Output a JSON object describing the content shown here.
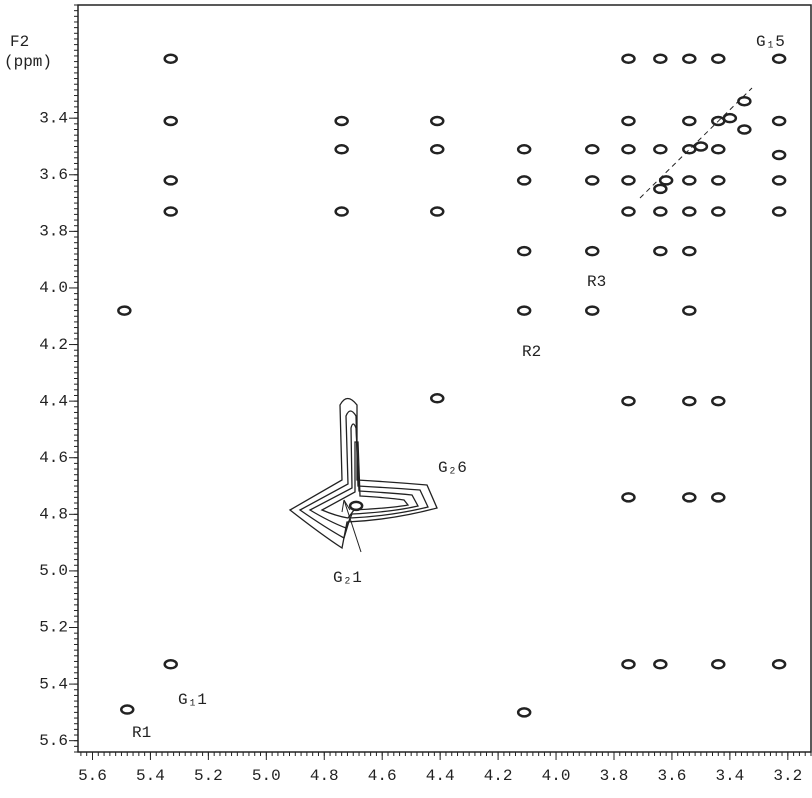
{
  "chart_data": {
    "type": "scatter",
    "y_label": [
      "F2",
      "(ppm)"
    ],
    "xlim": [
      5.65,
      3.12
    ],
    "ylim": [
      3.0,
      5.64
    ],
    "xticks": [
      5.6,
      5.4,
      5.2,
      {
        "value": 5,
        "label": "5.0"
      },
      4.8,
      4.6,
      4.4,
      4.2,
      {
        "value": 4,
        "label": "4.0"
      },
      3.8,
      3.6,
      3.4,
      3.2
    ],
    "yticks": [
      3.4,
      3.6,
      3.8,
      {
        "value": 4,
        "label": "4.0"
      },
      4.2,
      4.4,
      4.6,
      4.8,
      {
        "value": 5,
        "label": "5.0"
      },
      5.2,
      5.4,
      5.6
    ],
    "series": [
      {
        "color": "#222222",
        "x": [
          5.33,
          5.33,
          5.33,
          5.33,
          5.33,
          5.49,
          5.48,
          4.74,
          4.74,
          4.74,
          4.41,
          4.41,
          4.41,
          4.41,
          4.11,
          4.11,
          4.11,
          4.11,
          4.11,
          3.875,
          3.875,
          3.875,
          3.875,
          3.75,
          3.75,
          3.75,
          3.75,
          3.75,
          3.75,
          3.75,
          3.75,
          3.64,
          3.64,
          3.64,
          3.64,
          3.64,
          3.64,
          3.54,
          3.54,
          3.54,
          3.54,
          3.54,
          3.54,
          3.54,
          3.54,
          3.54,
          3.44,
          3.44,
          3.44,
          3.44,
          3.44,
          3.44,
          3.44,
          3.44,
          3.35,
          3.35,
          3.23,
          3.23,
          3.23,
          3.23,
          3.23,
          3.23,
          4.69,
          3.62,
          3.5,
          3.4
        ],
        "values": [
          3.19,
          3.41,
          3.62,
          3.73,
          5.33,
          4.08,
          5.49,
          3.41,
          3.51,
          3.73,
          3.41,
          3.51,
          3.73,
          4.39,
          3.51,
          3.62,
          3.87,
          4.08,
          5.5,
          3.51,
          3.62,
          3.87,
          4.08,
          3.19,
          3.41,
          3.51,
          3.62,
          3.73,
          4.4,
          4.74,
          5.33,
          3.19,
          3.51,
          3.65,
          3.73,
          3.87,
          5.33,
          3.19,
          3.41,
          3.51,
          3.62,
          3.73,
          3.87,
          4.08,
          4.4,
          4.74,
          3.19,
          3.41,
          3.51,
          3.62,
          3.73,
          4.4,
          4.74,
          5.33,
          3.34,
          3.44,
          3.19,
          3.41,
          3.53,
          3.62,
          3.73,
          5.33,
          4.77,
          3.62,
          3.5,
          3.4
        ]
      }
    ],
    "annotations": [
      "G₁5",
      "R3",
      "R2",
      "G₂6",
      "G₂1",
      "G₁1",
      "R1"
    ]
  }
}
